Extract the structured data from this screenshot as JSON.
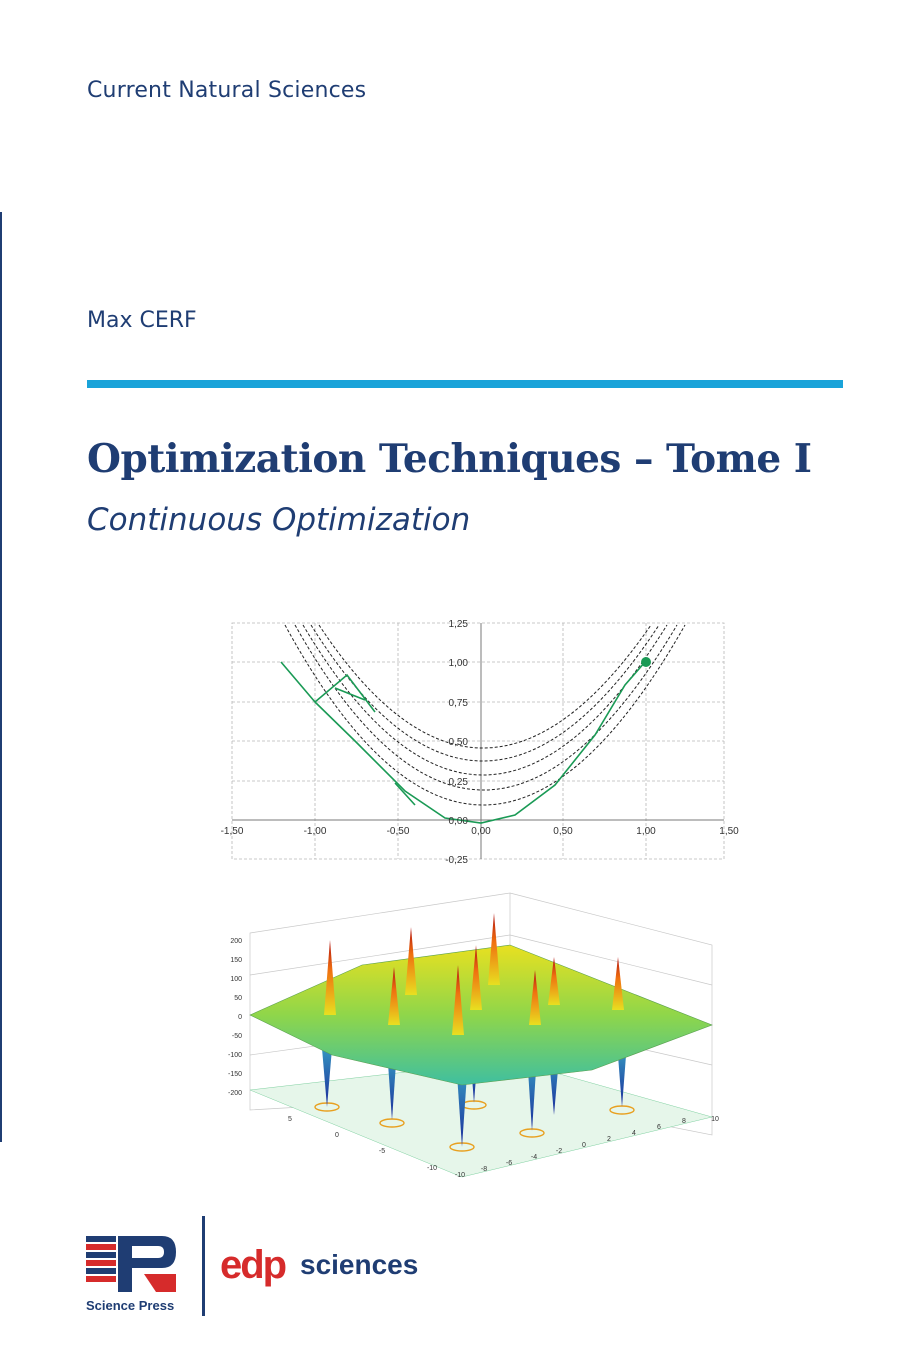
{
  "cover": {
    "series": "Current Natural Sciences",
    "author": "Max CERF",
    "title": "Optimization Techniques – Tome I",
    "subtitle": "Continuous Optimization"
  },
  "figures": {
    "contour_plot": {
      "x_ticks": [
        "-1,50",
        "-1,00",
        "-0,50",
        "0,00",
        "0,50",
        "1,00",
        "1,50"
      ],
      "y_ticks": [
        "1,25",
        "1,00",
        "0,75",
        "0,50",
        "0,25",
        "0,00",
        "-0,25"
      ]
    },
    "surface_plot": {
      "z_ticks": [
        "200",
        "150",
        "100",
        "50",
        "0",
        "-50",
        "-100",
        "-150",
        "-200"
      ],
      "x_ticks": [
        "-10",
        "-5",
        "0",
        "5"
      ],
      "y_ticks": [
        "-10",
        "-8",
        "-6",
        "-4",
        "-2",
        "0",
        "2",
        "4",
        "6",
        "8",
        "10"
      ]
    }
  },
  "publishers": {
    "science_press": "Science Press",
    "edp_prefix": "edp",
    "edp_suffix": "sciences"
  },
  "colors": {
    "navy": "#1f3d73",
    "accent_blue": "#1aa3d9",
    "path_green": "#1a9a55",
    "logo_red": "#d62b2b"
  }
}
